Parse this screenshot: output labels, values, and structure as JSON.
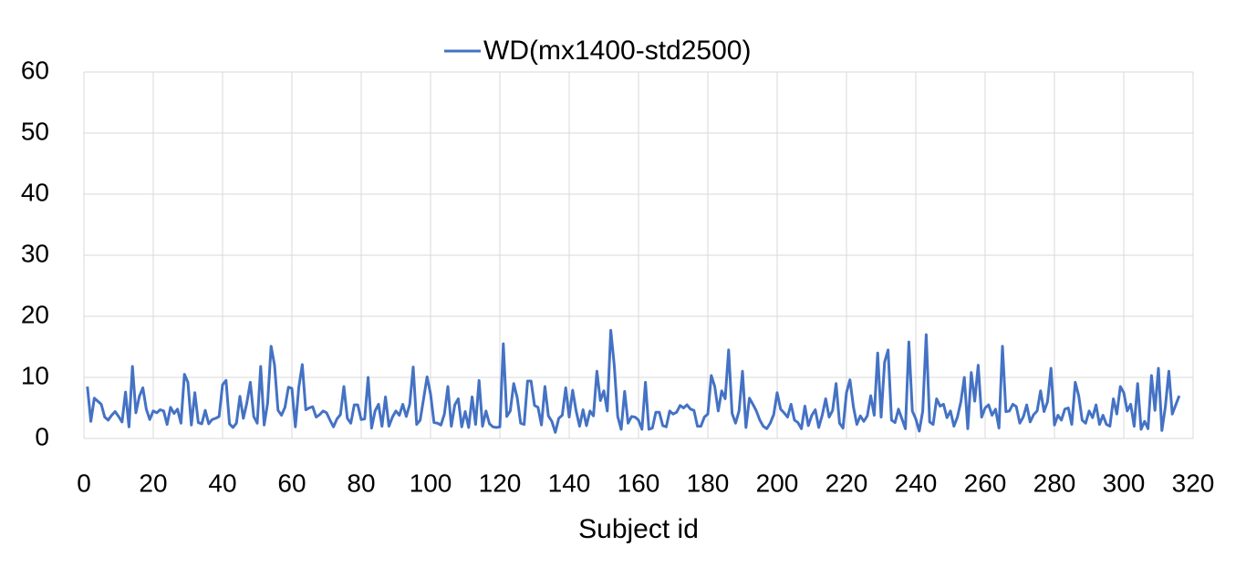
{
  "chart_data": {
    "type": "line",
    "x": [
      1,
      2,
      3,
      4,
      5,
      6,
      7,
      8,
      9,
      10,
      11,
      12,
      13,
      14,
      15,
      16,
      17,
      18,
      19,
      20,
      21,
      22,
      23,
      24,
      25,
      26,
      27,
      28,
      29,
      30,
      31,
      32,
      33,
      34,
      35,
      36,
      37,
      38,
      39,
      40,
      41,
      42,
      43,
      44,
      45,
      46,
      47,
      48,
      49,
      50,
      51,
      52,
      53,
      54,
      55,
      56,
      57,
      58,
      59,
      60,
      61,
      62,
      63,
      64,
      65,
      66,
      67,
      68,
      69,
      70,
      71,
      72,
      73,
      74,
      75,
      76,
      77,
      78,
      79,
      80,
      81,
      82,
      83,
      84,
      85,
      86,
      87,
      88,
      89,
      90,
      91,
      92,
      93,
      94,
      95,
      96,
      97,
      98,
      99,
      100,
      101,
      102,
      103,
      104,
      105,
      106,
      107,
      108,
      109,
      110,
      111,
      112,
      113,
      114,
      115,
      116,
      117,
      118,
      119,
      120,
      121,
      122,
      123,
      124,
      125,
      126,
      127,
      128,
      129,
      130,
      131,
      132,
      133,
      134,
      135,
      136,
      137,
      138,
      139,
      140,
      141,
      142,
      143,
      144,
      145,
      146,
      147,
      148,
      149,
      150,
      151,
      152,
      153,
      154,
      155,
      156,
      157,
      158,
      159,
      160,
      161,
      162,
      163,
      164,
      165,
      166,
      167,
      168,
      169,
      170,
      171,
      172,
      173,
      174,
      175,
      176,
      177,
      178,
      179,
      180,
      181,
      182,
      183,
      184,
      185,
      186,
      187,
      188,
      189,
      190,
      191,
      192,
      193,
      194,
      195,
      196,
      197,
      198,
      199,
      200,
      201,
      202,
      203,
      204,
      205,
      206,
      207,
      208,
      209,
      210,
      211,
      212,
      213,
      214,
      215,
      216,
      217,
      218,
      219,
      220,
      221,
      222,
      223,
      224,
      225,
      226,
      227,
      228,
      229,
      230,
      231,
      232,
      233,
      234,
      235,
      236,
      237,
      238,
      239,
      240,
      241,
      242,
      243,
      244,
      245,
      246,
      247,
      248,
      249,
      250,
      251,
      252,
      253,
      254,
      255,
      256,
      257,
      258,
      259,
      260,
      261,
      262,
      263,
      264,
      265,
      266,
      267,
      268,
      269,
      270,
      271,
      272,
      273,
      274,
      275,
      276,
      277,
      278,
      279,
      280,
      281,
      282,
      283,
      284,
      285,
      286,
      287,
      288,
      289,
      290,
      291,
      292,
      293,
      294,
      295,
      296,
      297,
      298,
      299,
      300,
      301,
      302,
      303,
      304,
      305,
      306,
      307,
      308,
      309,
      310,
      311,
      312,
      313,
      314,
      315,
      316
    ],
    "series": [
      {
        "name": "WD(mx1400-std2500)",
        "color": "#4472c4",
        "values": [
          8.5,
          2.8,
          6.6,
          6.1,
          5.6,
          3.5,
          3,
          3.8,
          4.4,
          3.6,
          2.7,
          7.6,
          1.9,
          11.8,
          4.2,
          6.9,
          8.3,
          4.8,
          3.1,
          4.5,
          4.2,
          4.7,
          4.5,
          2.3,
          5.1,
          4.1,
          4.8,
          2.5,
          10.5,
          9.2,
          2.2,
          7.5,
          2.6,
          2.4,
          4.6,
          2.4,
          3.1,
          3.3,
          3.6,
          8.8,
          9.5,
          2.4,
          1.8,
          2.5,
          6.9,
          3.3,
          5.8,
          9.2,
          3.6,
          2.5,
          11.8,
          2.2,
          5.8,
          15.1,
          12,
          4.6,
          3.8,
          5.1,
          8.4,
          8.2,
          1.9,
          8.4,
          12.1,
          4.7,
          5,
          5.2,
          3.5,
          3.9,
          4.5,
          4.2,
          3,
          1.9,
          3.2,
          3.9,
          8.5,
          3.3,
          2.5,
          5.5,
          5.5,
          3.1,
          3.2,
          10,
          1.7,
          4.5,
          5.6,
          2,
          6.8,
          2,
          3.5,
          4.5,
          3.8,
          5.6,
          3.6,
          5.6,
          11.7,
          2.3,
          3,
          6.5,
          10.1,
          7.3,
          2.6,
          2.5,
          2.2,
          4,
          8.5,
          2,
          5.5,
          6.5,
          1.9,
          4.4,
          1.8,
          6.8,
          2.3,
          9.5,
          2,
          4.5,
          2.4,
          1.9,
          1.8,
          1.9,
          15.5,
          3.6,
          4.5,
          9,
          6.7,
          2.5,
          2.3,
          9.4,
          9.4,
          5.4,
          5.1,
          2.2,
          8.5,
          3.7,
          2.8,
          1,
          3.3,
          3.8,
          8.3,
          3.5,
          7.9,
          4.5,
          2,
          4.7,
          2.1,
          4.5,
          3.7,
          11,
          6.2,
          7.8,
          4.5,
          17.7,
          12,
          3.6,
          1.5,
          7.7,
          2.5,
          3.6,
          3.5,
          3,
          1.5,
          9.2,
          1.5,
          1.7,
          4.3,
          4.3,
          2.1,
          1.9,
          4.5,
          4,
          4.3,
          5.4,
          5,
          5.5,
          4.8,
          4.6,
          2,
          2,
          3.5,
          4,
          10.3,
          8.5,
          4.5,
          7.8,
          6.5,
          14.5,
          4.1,
          2.5,
          4.5,
          11,
          1.8,
          6.6,
          5.6,
          4.5,
          3,
          2,
          1.6,
          2.5,
          3.9,
          7.5,
          4.8,
          4.2,
          3.5,
          5.6,
          3,
          2.6,
          1.6,
          5.3,
          2.1,
          3.8,
          4.7,
          1.8,
          3.8,
          6.5,
          3.5,
          4.6,
          9,
          2.5,
          1.7,
          7.5,
          9.6,
          5.2,
          2.3,
          3.7,
          2.8,
          3.7,
          7,
          3.8,
          14,
          3.5,
          12.5,
          14.5,
          3,
          2.6,
          4.8,
          3.2,
          1.6,
          15.8,
          4.5,
          3.2,
          1.2,
          4.5,
          17,
          2.7,
          2.3,
          6.5,
          5.3,
          5.6,
          3.4,
          4.5,
          2,
          3.5,
          6,
          10,
          1.6,
          10.8,
          6.1,
          12,
          3.5,
          5,
          5.5,
          3.8,
          4.8,
          1.7,
          15.1,
          4.4,
          4.5,
          5.6,
          5.2,
          2.5,
          3.5,
          5.5,
          2.7,
          3.9,
          4.5,
          7.8,
          4.4,
          6,
          11.5,
          2.2,
          3.8,
          3,
          4.8,
          5,
          2.3,
          9.2,
          7,
          3,
          2.5,
          4.5,
          3.4,
          5.5,
          2.3,
          3.8,
          2.3,
          2,
          6.5,
          4,
          8.5,
          7.5,
          4.5,
          5.6,
          2,
          9,
          1.5,
          2.8,
          1.6,
          10.3,
          4.6,
          11.5,
          1.3,
          5.2,
          11,
          4,
          5.5,
          7
        ]
      }
    ],
    "x_label": "Subject id",
    "xlim": [
      0,
      320
    ],
    "xticks": [
      0,
      20,
      40,
      60,
      80,
      100,
      120,
      140,
      160,
      180,
      200,
      220,
      240,
      260,
      280,
      300,
      320
    ],
    "ylim": [
      0,
      60
    ],
    "yticks": [
      0,
      10,
      20,
      30,
      40,
      50,
      60
    ],
    "grid": true,
    "legend": "top"
  }
}
